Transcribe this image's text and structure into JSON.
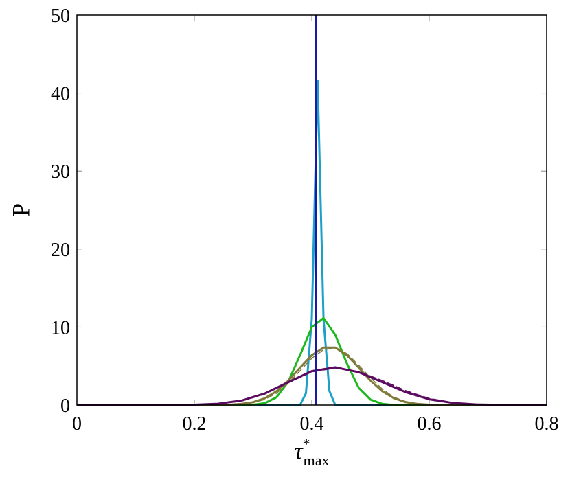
{
  "chart_data": {
    "type": "line",
    "xlabel": {
      "base": "τ",
      "sup": "*",
      "sub": "max"
    },
    "ylabel": "P",
    "xlim": [
      0,
      0.8
    ],
    "ylim": [
      0,
      50
    ],
    "xticks": [
      0,
      0.2,
      0.4,
      0.6,
      0.8
    ],
    "yticks": [
      0,
      10,
      20,
      30,
      40,
      50
    ],
    "series": [
      {
        "color": "#1c9fc9",
        "dashed": false,
        "x": [
          0,
          0.38,
          0.39,
          0.4,
          0.41,
          0.42,
          0.43,
          0.44,
          0.8
        ],
        "values": [
          0,
          0,
          1.5,
          11,
          41.6,
          11,
          1.8,
          0,
          0
        ]
      },
      {
        "color": "#1db81d",
        "dashed": false,
        "x": [
          0,
          0.3,
          0.32,
          0.34,
          0.36,
          0.38,
          0.4,
          0.42,
          0.44,
          0.46,
          0.48,
          0.5,
          0.52,
          0.54,
          0.8
        ],
        "values": [
          0,
          0.04,
          0.24,
          1.0,
          3.0,
          6.4,
          10.0,
          11.15,
          9.0,
          5.3,
          2.2,
          0.7,
          0.15,
          0,
          0
        ]
      },
      {
        "color": "#7f7a3a",
        "dashed": true,
        "x": [
          0.26,
          0.28,
          0.3,
          0.32,
          0.34,
          0.36,
          0.38,
          0.4,
          0.42,
          0.44,
          0.46,
          0.48,
          0.5,
          0.52,
          0.54,
          0.56,
          0.58,
          0.6
        ],
        "values": [
          0.03,
          0.11,
          0.3,
          0.72,
          1.52,
          2.8,
          4.4,
          6.0,
          7.1,
          7.3,
          6.6,
          5.1,
          3.5,
          2.05,
          1.0,
          0.45,
          0.17,
          0.05
        ]
      },
      {
        "color": "#7f7a3a",
        "dashed": false,
        "x": [
          0,
          0.26,
          0.28,
          0.3,
          0.32,
          0.34,
          0.36,
          0.38,
          0.4,
          0.42,
          0.44,
          0.46,
          0.48,
          0.5,
          0.52,
          0.54,
          0.56,
          0.58,
          0.6,
          0.8
        ],
        "values": [
          0,
          0.04,
          0.14,
          0.37,
          0.87,
          1.78,
          3.13,
          4.8,
          6.39,
          7.37,
          7.37,
          6.39,
          4.8,
          3.13,
          1.78,
          0.87,
          0.37,
          0.14,
          0.04,
          0
        ]
      },
      {
        "color": "#5a0a5f",
        "dashed": true,
        "x": [
          0.2,
          0.24,
          0.28,
          0.32,
          0.36,
          0.4,
          0.44,
          0.48,
          0.52,
          0.56,
          0.6,
          0.64,
          0.68,
          0.72
        ],
        "values": [
          0.03,
          0.14,
          0.5,
          1.4,
          2.85,
          4.25,
          4.75,
          4.3,
          3.15,
          1.85,
          0.85,
          0.33,
          0.1,
          0.03
        ]
      },
      {
        "color": "#5a0a5f",
        "dashed": false,
        "x": [
          0,
          0.2,
          0.24,
          0.28,
          0.32,
          0.36,
          0.4,
          0.44,
          0.48,
          0.52,
          0.56,
          0.6,
          0.64,
          0.68,
          0.72,
          0.8
        ],
        "values": [
          0,
          0.04,
          0.17,
          0.57,
          1.49,
          2.94,
          4.35,
          4.84,
          4.21,
          2.94,
          1.65,
          0.74,
          0.27,
          0.08,
          0.02,
          0
        ]
      },
      {
        "color": "#1a1aa8",
        "dashed": false,
        "x": [
          0.407,
          0.407
        ],
        "values": [
          0,
          50
        ]
      }
    ]
  }
}
